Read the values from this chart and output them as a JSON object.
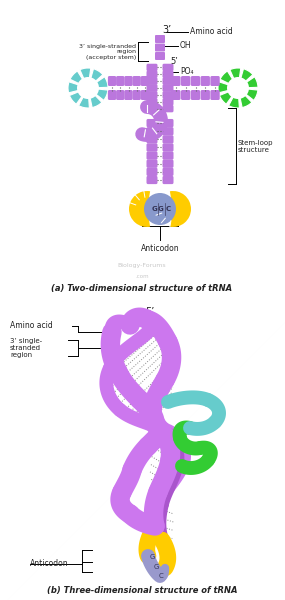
{
  "title_a": "(a) Two-dimensional structure of tRNA",
  "title_b": "(b) Three-dimensional structure of tRNA",
  "bg_color": "#ffffff",
  "purple": "#bb77dd",
  "purple2": "#9944bb",
  "cyan": "#66cccc",
  "green": "#33cc33",
  "yellow": "#ffcc00",
  "blue_loop": "#8899cc",
  "label_color": "#222222",
  "watermark": "Biology-Forums",
  "watermark2": ".com"
}
